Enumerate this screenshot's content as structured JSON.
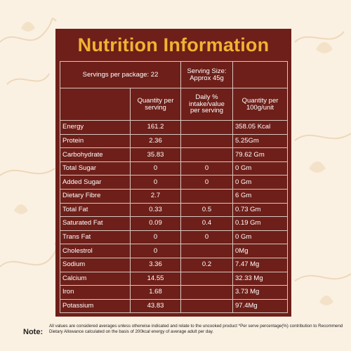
{
  "title": "Nutrition Information",
  "servings_per_package": "Servings per package: 22",
  "serving_size": "Serving Size: Approx 45g",
  "columns": {
    "qty_per_serving": "Quantity per serving",
    "daily_intake": "Daily % intake/value per serving",
    "qty_per_100g": "Quantity per 100g/unit"
  },
  "rows": [
    {
      "name": "Energy",
      "qty": "161.2",
      "daily": "",
      "per100": "358.05 Kcal"
    },
    {
      "name": "Protein",
      "qty": "2.36",
      "daily": "",
      "per100": "5.25Gm"
    },
    {
      "name": "Carbohydrate",
      "qty": "35.83",
      "daily": "",
      "per100": "79.62 Gm"
    },
    {
      "name": "Total Sugar",
      "qty": "0",
      "daily": "0",
      "per100": "0 Gm"
    },
    {
      "name": "Added Sugar",
      "qty": "0",
      "daily": "0",
      "per100": "0 Gm"
    },
    {
      "name": "Dietary Fibre",
      "qty": "2.7",
      "daily": "",
      "per100": "6 Gm"
    },
    {
      "name": "Total Fat",
      "qty": "0.33",
      "daily": "0.5",
      "per100": "0.73 Gm"
    },
    {
      "name": "Saturated Fat",
      "qty": "0.09",
      "daily": "0.4",
      "per100": "0.19 Gm"
    },
    {
      "name": "Trans Fat",
      "qty": "0",
      "daily": "0",
      "per100": "0 Gm"
    },
    {
      "name": "Cholestrol",
      "qty": "0",
      "daily": "",
      "per100": "0Mg"
    },
    {
      "name": "Sodium",
      "qty": "3.36",
      "daily": "0.2",
      "per100": "7.47 Mg"
    },
    {
      "name": "Calcium",
      "qty": "14.55",
      "daily": "",
      "per100": "32.33 Mg"
    },
    {
      "name": "Iron",
      "qty": "1.68",
      "daily": "",
      "per100": "3.73 Mg"
    },
    {
      "name": "Potassium",
      "qty": "43.83",
      "daily": "",
      "per100": "97.4Mg"
    }
  ],
  "note": {
    "label": "Note:",
    "text": "All values are considered averages unless otherwise indicated and relate to the uncooked product *Per serve percentage(%) contribution to Recommend Dietary Allowance calculated on the basis of 200kcal energy of average adult per day."
  },
  "colors": {
    "panel": "#6e1f19",
    "title": "#f1b232",
    "background": "#fbf1e2"
  }
}
